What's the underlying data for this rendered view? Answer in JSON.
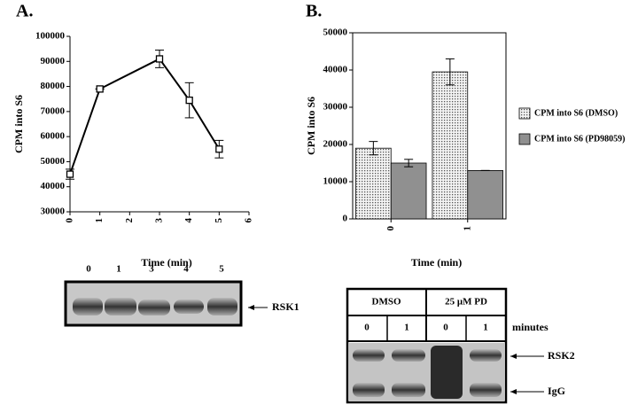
{
  "chart_data": [
    {
      "type": "line",
      "panel": "A.",
      "y_label": "CPM into S6",
      "x_label": "Time (min)",
      "x": [
        0,
        1,
        3,
        4,
        5
      ],
      "values": [
        45000,
        79000,
        91000,
        74500,
        55000
      ],
      "errors": [
        2000,
        0,
        3500,
        7000,
        3500
      ],
      "color": "#000000",
      "xlim": [
        0,
        6
      ],
      "xticks": [
        0,
        1,
        2,
        3,
        4,
        5,
        6
      ],
      "ylim": [
        30000,
        100000
      ],
      "yticks": [
        30000,
        40000,
        50000,
        60000,
        70000,
        80000,
        90000,
        100000
      ]
    },
    {
      "type": "bar",
      "panel": "B.",
      "y_label": "CPM into S6",
      "x_label": "Time (min)",
      "categories": [
        "0",
        "1"
      ],
      "series": [
        {
          "name": "CPM into S6 (DMSO)",
          "color": "#e0e0e0",
          "values": [
            19000,
            39500
          ],
          "errors": [
            1800,
            3500
          ]
        },
        {
          "name": "CPM into S6 (PD98059)",
          "color": "#909090",
          "values": [
            15000,
            13000
          ],
          "errors": [
            1000,
            0
          ]
        }
      ],
      "ylim": [
        0,
        50000
      ],
      "yticks": [
        0,
        10000,
        20000,
        30000,
        40000,
        50000
      ],
      "legend": "right"
    }
  ],
  "blot_a": {
    "lanes": [
      "0",
      "1",
      "3",
      "4",
      "5"
    ],
    "band": "RSK1"
  },
  "blot_b": {
    "treatments": [
      "DMSO",
      "25 μM PD"
    ],
    "row_label": "minutes",
    "times": [
      "0",
      "1",
      "0",
      "1"
    ],
    "bands": [
      "RSK2",
      "IgG"
    ]
  }
}
